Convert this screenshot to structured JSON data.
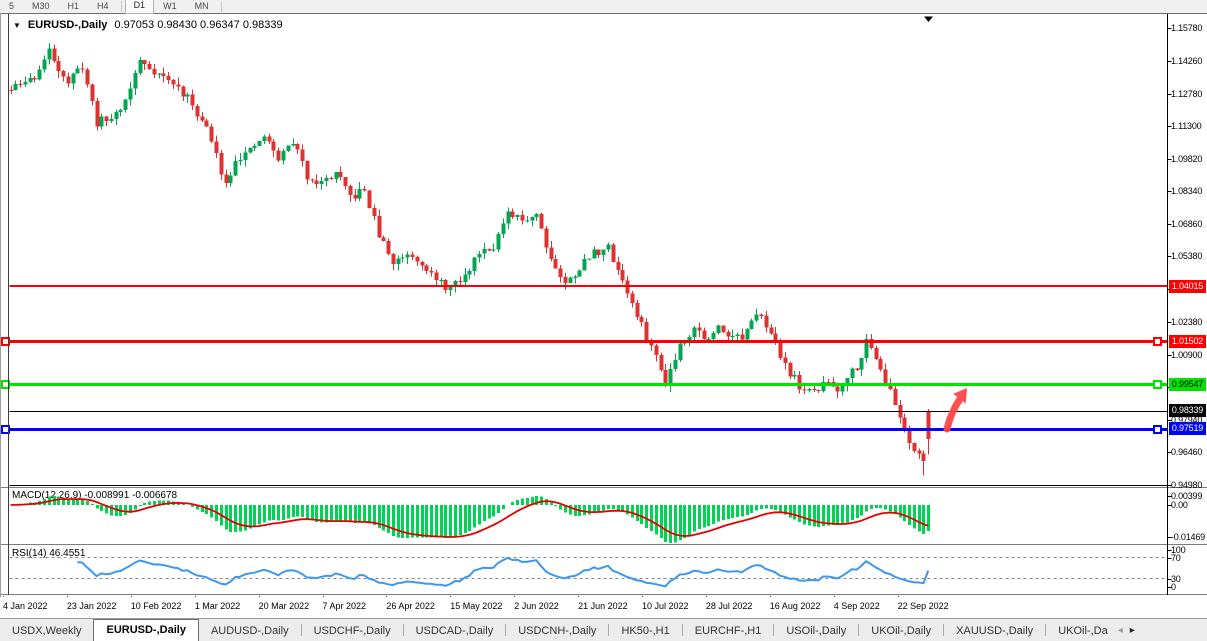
{
  "window": {
    "toolbar": {
      "timeframes": [
        "5",
        "M30",
        "H1",
        "H4",
        "D1",
        "W1",
        "MN"
      ],
      "active_timeframe": "D1"
    }
  },
  "chart": {
    "title_symbol": "EURUSD-,Daily",
    "ohlc_text": "0.97053 0.98430 0.96347 0.98339",
    "dropdown_icon": "▼",
    "current_bar_marker_icon": "▼"
  },
  "indicators": {
    "macd": {
      "label": "MACD(12,26,9)",
      "value": "-0.008991",
      "signal_value": "-0.006678",
      "axis_labels": [
        "0.00399",
        "0.00",
        "-0.01469"
      ]
    },
    "rsi": {
      "label": "RSI(14)",
      "value": "46.4551",
      "axis_labels": [
        "100",
        "70",
        "30",
        "0"
      ],
      "levels": [
        70,
        30
      ]
    }
  },
  "tab_bar": {
    "tabs": [
      {
        "label": "USDX,Weekly",
        "active": false
      },
      {
        "label": "EURUSD-,Daily",
        "active": true
      },
      {
        "label": "AUDUSD-,Daily",
        "active": false
      },
      {
        "label": "USDCHF-,Daily",
        "active": false
      },
      {
        "label": "USDCAD-,Daily",
        "active": false
      },
      {
        "label": "USDCNH-,Daily",
        "active": false
      },
      {
        "label": "HK50-,H1",
        "active": false
      },
      {
        "label": "EURCHF-,H1",
        "active": false
      },
      {
        "label": "USOil-,Daily",
        "active": false
      },
      {
        "label": "UKOil-,Daily",
        "active": false
      },
      {
        "label": "XAUUSD-,Daily",
        "active": false
      },
      {
        "label": "UKOil-,Da",
        "active": false,
        "truncated": true
      }
    ],
    "scroll_icons": {
      "left": "◂",
      "right": "▸"
    }
  },
  "colors": {
    "candle_up": "#00a651",
    "candle_down": "#e03131",
    "macd_hist": "#00d455",
    "macd_signal": "#e60000",
    "rsi_line": "#3e97ef",
    "level_red": "#ff0000",
    "level_green": "#00e400",
    "level_blue": "#0000ff",
    "level_black": "#000000",
    "arrow_annotation": "#ff4242"
  },
  "chart_data": {
    "type": "candlestick",
    "symbol": "EURUSD-",
    "timeframe": "Daily",
    "last_bar": {
      "open": 0.97053,
      "high": 0.9843,
      "low": 0.96347,
      "close": 0.98339,
      "color": "red"
    },
    "price_axis_ticks": [
      "1.15780",
      "1.14260",
      "1.12780",
      "1.11300",
      "1.09820",
      "1.08340",
      "1.06860",
      "1.05380",
      "1.03900",
      "1.02380",
      "1.00900",
      "0.99420",
      "0.97940",
      "0.96460",
      "0.94980"
    ],
    "x_axis_dates": [
      "4 Jan 2022",
      "23 Jan 2022",
      "10 Feb 2022",
      "1 Mar 2022",
      "20 Mar 2022",
      "7 Apr 2022",
      "26 Apr 2022",
      "15 May 2022",
      "2 Jun 2022",
      "21 Jun 2022",
      "10 Jul 2022",
      "28 Jul 2022",
      "16 Aug 2022",
      "4 Sep 2022",
      "22 Sep 2022"
    ],
    "horizontal_lines": [
      {
        "price": 1.04015,
        "label": "1.04015",
        "color": "red",
        "width": 2,
        "badge_text_color": "#ffffff",
        "handles": false
      },
      {
        "price": 1.01502,
        "label": "1.01502",
        "color": "red",
        "width": 3,
        "badge_text_color": "#ffffff",
        "handles": true
      },
      {
        "price": 0.99547,
        "label": "0.99547",
        "color": "green",
        "width": 3,
        "badge_text_color": "#000000",
        "handles": true
      },
      {
        "price": 0.98339,
        "label": "0.98339",
        "color": "black",
        "width": 1,
        "badge_text_color": "#ffffff",
        "handles": false
      },
      {
        "price": 0.97519,
        "label": "0.97519",
        "color": "blue",
        "width": 3,
        "badge_text_color": "#ffffff",
        "handles": true
      }
    ],
    "indicator_values": {
      "macd": -0.008991,
      "macd_signal": -0.006678,
      "rsi": 46.4551
    },
    "price_path": [
      [
        0,
        1.1295
      ],
      [
        5,
        1.1355
      ],
      [
        8,
        1.1468
      ],
      [
        12,
        1.133
      ],
      [
        15,
        1.1405
      ],
      [
        18,
        1.1148
      ],
      [
        21,
        1.1165
      ],
      [
        24,
        1.1245
      ],
      [
        27,
        1.1428
      ],
      [
        31,
        1.1368
      ],
      [
        35,
        1.1305
      ],
      [
        38,
        1.1228
      ],
      [
        41,
        1.112
      ],
      [
        45,
        1.0868
      ],
      [
        47,
        1.0985
      ],
      [
        50,
        1.101
      ],
      [
        53,
        1.1085
      ],
      [
        56,
        1.0982
      ],
      [
        59,
        1.1062
      ],
      [
        62,
        1.0905
      ],
      [
        65,
        1.0872
      ],
      [
        68,
        1.0915
      ],
      [
        71,
        1.0805
      ],
      [
        74,
        1.0838
      ],
      [
        77,
        1.0635
      ],
      [
        80,
        1.0508
      ],
      [
        83,
        1.0555
      ],
      [
        86,
        1.0515
      ],
      [
        89,
        1.0422
      ],
      [
        92,
        1.0392
      ],
      [
        95,
        1.0442
      ],
      [
        98,
        1.0565
      ],
      [
        101,
        1.0588
      ],
      [
        104,
        1.0722
      ],
      [
        107,
        1.0702
      ],
      [
        110,
        1.0735
      ],
      [
        113,
        1.0528
      ],
      [
        116,
        1.0408
      ],
      [
        119,
        1.0488
      ],
      [
        122,
        1.0555
      ],
      [
        125,
        1.0575
      ],
      [
        128,
        1.0432
      ],
      [
        131,
        1.0262
      ],
      [
        133,
        1.0175
      ],
      [
        135,
        1.0078
      ],
      [
        137,
        0.9968
      ],
      [
        140,
        1.0138
      ],
      [
        143,
        1.0215
      ],
      [
        146,
        1.0152
      ],
      [
        148,
        1.0215
      ],
      [
        150,
        1.0192
      ],
      [
        153,
        1.0162
      ],
      [
        155,
        1.0228
      ],
      [
        157,
        1.0288
      ],
      [
        159,
        1.0178
      ],
      [
        161,
        1.0092
      ],
      [
        163,
        1.001
      ],
      [
        165,
        0.9945
      ],
      [
        167,
        0.9915
      ],
      [
        169,
        0.9935
      ],
      [
        171,
        0.9968
      ],
      [
        173,
        0.993
      ],
      [
        175,
        0.9995
      ],
      [
        177,
        1.0042
      ],
      [
        179,
        1.0145
      ],
      [
        181,
        1.0088
      ],
      [
        183,
        0.9975
      ],
      [
        185,
        0.986
      ],
      [
        187,
        0.9755
      ],
      [
        188,
        0.97
      ],
      [
        189,
        0.9665
      ],
      [
        190,
        0.964
      ],
      [
        191,
        0.9605
      ],
      [
        192,
        0.98339
      ]
    ],
    "synthesis": {
      "bars": 193,
      "seed": 11,
      "noise": 0.0021,
      "wick": 0.0031
    }
  }
}
